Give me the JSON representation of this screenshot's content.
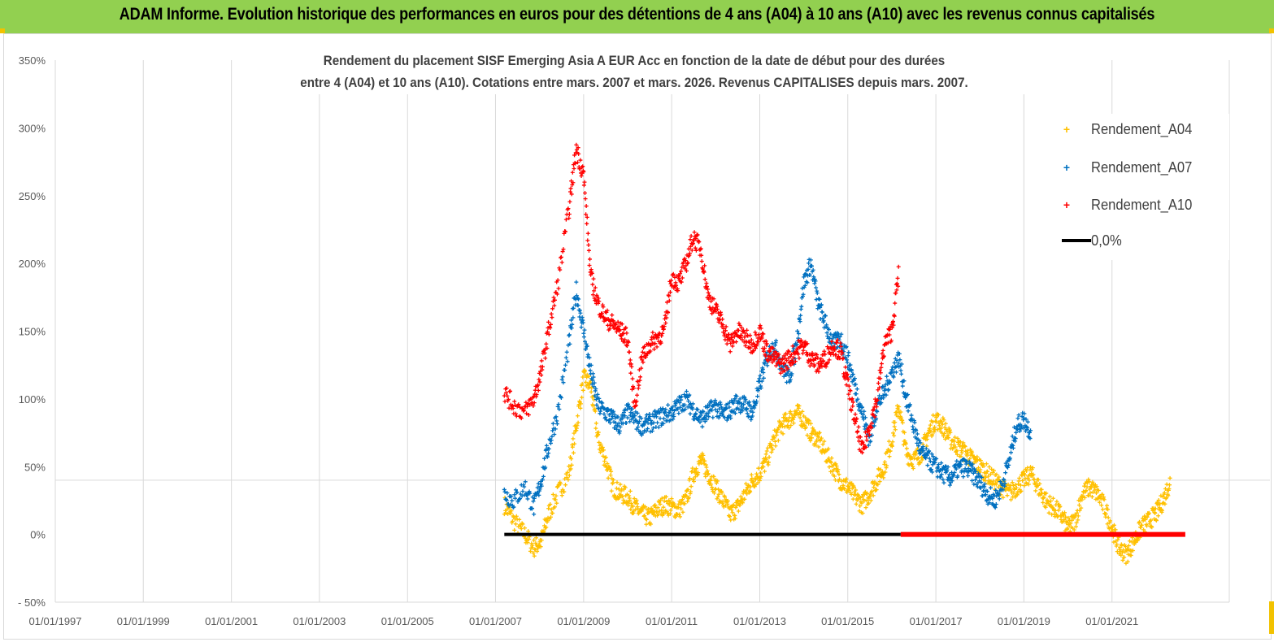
{
  "banner": {
    "title": "ADAM Informe. Evolution historique des performances en euros pour des détentions de 4 ans (A04) à 10 ans (A10) avec les revenus connus capitalisés"
  },
  "colors": {
    "banner": "#92d050",
    "a04": "#ffc000",
    "a07": "#0070c0",
    "a10": "#ff0000",
    "zero": "#000000",
    "grid": "#d9d9d9"
  },
  "chart_data": {
    "type": "scatter",
    "title_lines": [
      "Rendement du placement SISF Emerging Asia A EUR Acc en fonction de la date de début pour des durées",
      "entre 4 (A04) et 10 ans (A10). Cotations entre mars. 2007 et mars. 2026. Revenus CAPITALISES depuis mars. 2007."
    ],
    "xlabel": "",
    "ylabel": "",
    "x_range": [
      "1997-01-01",
      "2023-09-01"
    ],
    "ylim": [
      -50,
      350
    ],
    "y_ticks": [
      -50,
      0,
      50,
      100,
      150,
      200,
      250,
      300,
      350
    ],
    "y_tick_labels": [
      "- 50%",
      "0%",
      "50%",
      "100%",
      "150%",
      "200%",
      "250%",
      "300%",
      "350%"
    ],
    "x_tick_labels": [
      "01/01/1997",
      "01/01/1999",
      "01/01/2001",
      "01/01/2003",
      "01/01/2005",
      "01/01/2007",
      "01/01/2009",
      "01/01/2011",
      "01/01/2013",
      "01/01/2015",
      "01/01/2017",
      "01/01/2019",
      "01/01/2021"
    ],
    "x_ticks": [
      "1997-01-01",
      "1999-01-01",
      "2001-01-01",
      "2003-01-01",
      "2005-01-01",
      "2007-01-01",
      "2009-01-01",
      "2011-01-01",
      "2013-01-01",
      "2015-01-01",
      "2017-01-01",
      "2019-01-01",
      "2021-01-01"
    ],
    "extra_gridline_y": 40,
    "grid": true,
    "legend_position": "top-right",
    "series": [
      {
        "name": "Rendement_A04",
        "marker": "+",
        "color": "#ffc000",
        "x": [
          "2007-03-15",
          "2007-06-01",
          "2007-09-01",
          "2007-11-15",
          "2008-01-15",
          "2008-03-15",
          "2008-06-01",
          "2008-09-01",
          "2008-11-01",
          "2009-01-01",
          "2009-03-01",
          "2009-05-01",
          "2009-07-01",
          "2009-09-01",
          "2009-11-01",
          "2010-01-01",
          "2010-03-01",
          "2010-05-01",
          "2010-07-01",
          "2010-09-01",
          "2010-11-01",
          "2011-01-01",
          "2011-03-01",
          "2011-05-01",
          "2011-07-01",
          "2011-09-01",
          "2011-11-01",
          "2012-01-01",
          "2012-03-01",
          "2012-05-01",
          "2012-07-01",
          "2012-09-01",
          "2012-11-01",
          "2013-01-01",
          "2013-03-01",
          "2013-05-01",
          "2013-07-01",
          "2013-09-01",
          "2013-11-01",
          "2014-01-01",
          "2014-03-01",
          "2014-05-01",
          "2014-07-01",
          "2014-09-01",
          "2014-11-01",
          "2015-01-01",
          "2015-03-01",
          "2015-05-01",
          "2015-07-01",
          "2015-09-01",
          "2015-11-01",
          "2016-01-01",
          "2016-03-01",
          "2016-05-01",
          "2016-07-01",
          "2016-09-01",
          "2016-11-01",
          "2017-01-01",
          "2017-03-01",
          "2017-05-01",
          "2017-07-01",
          "2017-09-01",
          "2017-11-01",
          "2018-01-01",
          "2018-03-01",
          "2018-05-01",
          "2018-07-01",
          "2018-09-01",
          "2018-11-01",
          "2019-01-01",
          "2019-03-01",
          "2019-05-01",
          "2019-07-01",
          "2019-09-01",
          "2019-11-01",
          "2020-01-01",
          "2020-03-01",
          "2020-05-01",
          "2020-07-01",
          "2020-09-01",
          "2020-11-01",
          "2021-01-01",
          "2021-03-01",
          "2021-05-01",
          "2021-07-01",
          "2021-09-01",
          "2021-11-01",
          "2022-01-01",
          "2022-03-01",
          "2022-05-01"
        ],
        "y": [
          22,
          10,
          0,
          -10,
          -5,
          15,
          30,
          45,
          80,
          115,
          110,
          70,
          55,
          35,
          30,
          28,
          20,
          15,
          12,
          18,
          22,
          20,
          18,
          25,
          45,
          55,
          45,
          35,
          25,
          15,
          20,
          30,
          40,
          45,
          55,
          70,
          80,
          85,
          90,
          85,
          75,
          70,
          60,
          50,
          40,
          35,
          28,
          22,
          30,
          40,
          50,
          70,
          95,
          60,
          55,
          60,
          75,
          85,
          80,
          70,
          65,
          60,
          55,
          50,
          45,
          40,
          35,
          30,
          35,
          40,
          45,
          35,
          25,
          20,
          15,
          5,
          10,
          30,
          35,
          30,
          20,
          5,
          -10,
          -15,
          -5,
          5,
          10,
          15,
          25,
          40
        ]
      },
      {
        "name": "Rendement_A07",
        "marker": "+",
        "color": "#0070c0",
        "x": [
          "2007-03-15",
          "2007-06-01",
          "2007-09-01",
          "2007-11-15",
          "2008-01-15",
          "2008-03-15",
          "2008-06-01",
          "2008-09-01",
          "2008-11-01",
          "2009-01-01",
          "2009-03-01",
          "2009-05-01",
          "2009-07-01",
          "2009-09-01",
          "2009-11-01",
          "2010-01-01",
          "2010-03-01",
          "2010-05-01",
          "2010-07-01",
          "2010-09-01",
          "2010-11-01",
          "2011-01-01",
          "2011-03-01",
          "2011-05-01",
          "2011-07-01",
          "2011-09-01",
          "2011-11-01",
          "2012-01-01",
          "2012-03-01",
          "2012-05-01",
          "2012-07-01",
          "2012-09-01",
          "2012-11-01",
          "2013-01-01",
          "2013-03-01",
          "2013-05-01",
          "2013-07-01",
          "2013-09-01",
          "2013-11-01",
          "2014-01-01",
          "2014-03-01",
          "2014-05-01",
          "2014-07-01",
          "2014-09-01",
          "2014-11-01",
          "2015-01-01",
          "2015-03-01",
          "2015-05-01",
          "2015-07-01",
          "2015-09-01",
          "2015-11-01",
          "2016-01-01",
          "2016-03-01",
          "2016-05-01",
          "2016-07-01",
          "2016-09-01",
          "2016-11-01",
          "2017-01-01",
          "2017-03-01",
          "2017-05-01",
          "2017-07-01",
          "2017-09-01",
          "2017-11-01",
          "2018-01-01",
          "2018-03-01",
          "2018-05-01",
          "2018-07-01",
          "2018-09-01",
          "2018-11-01",
          "2019-01-01",
          "2019-03-01"
        ],
        "y": [
          30,
          25,
          35,
          20,
          40,
          65,
          90,
          140,
          180,
          150,
          120,
          95,
          90,
          85,
          80,
          90,
          85,
          80,
          82,
          85,
          88,
          90,
          95,
          100,
          92,
          85,
          90,
          95,
          88,
          92,
          98,
          95,
          90,
          110,
          130,
          140,
          125,
          115,
          140,
          185,
          200,
          170,
          155,
          140,
          145,
          130,
          110,
          90,
          70,
          95,
          105,
          120,
          130,
          100,
          80,
          60,
          55,
          50,
          45,
          42,
          48,
          50,
          45,
          38,
          30,
          25,
          35,
          55,
          80,
          85,
          75
        ]
      },
      {
        "name": "Rendement_A10",
        "marker": "+",
        "color": "#ff0000",
        "x": [
          "2007-03-15",
          "2007-06-01",
          "2007-09-01",
          "2007-11-15",
          "2008-01-15",
          "2008-03-15",
          "2008-06-01",
          "2008-09-01",
          "2008-11-01",
          "2009-01-01",
          "2009-03-01",
          "2009-05-01",
          "2009-07-01",
          "2009-09-01",
          "2009-11-01",
          "2010-01-01",
          "2010-03-01",
          "2010-05-01",
          "2010-07-01",
          "2010-09-01",
          "2010-11-01",
          "2011-01-01",
          "2011-03-01",
          "2011-05-01",
          "2011-07-01",
          "2011-09-01",
          "2011-11-01",
          "2012-01-01",
          "2012-03-01",
          "2012-05-01",
          "2012-07-01",
          "2012-09-01",
          "2012-11-01",
          "2013-01-01",
          "2013-03-01",
          "2013-05-01",
          "2013-07-01",
          "2013-09-01",
          "2013-11-01",
          "2014-01-01",
          "2014-03-01",
          "2014-05-01",
          "2014-07-01",
          "2014-09-01",
          "2014-11-01",
          "2015-01-01",
          "2015-03-01",
          "2015-05-01",
          "2015-07-01",
          "2015-09-01",
          "2015-11-01",
          "2016-01-01",
          "2016-03-01"
        ],
        "y": [
          105,
          95,
          90,
          100,
          120,
          150,
          185,
          240,
          285,
          265,
          190,
          170,
          160,
          155,
          150,
          145,
          95,
          130,
          140,
          145,
          150,
          190,
          185,
          200,
          220,
          210,
          175,
          165,
          155,
          140,
          150,
          145,
          140,
          150,
          135,
          130,
          125,
          130,
          135,
          140,
          130,
          125,
          130,
          140,
          135,
          110,
          85,
          60,
          80,
          100,
          140,
          150,
          195
        ]
      },
      {
        "name": "0,0%",
        "marker": "line",
        "color": "#000000",
        "x": [
          "2007-03-15",
          "2016-03-15"
        ],
        "y": [
          0,
          0
        ]
      },
      {
        "name": "",
        "marker": "line",
        "color": "#ff0000",
        "x": [
          "2016-03-15",
          "2022-09-01"
        ],
        "y": [
          0,
          0
        ]
      }
    ]
  }
}
